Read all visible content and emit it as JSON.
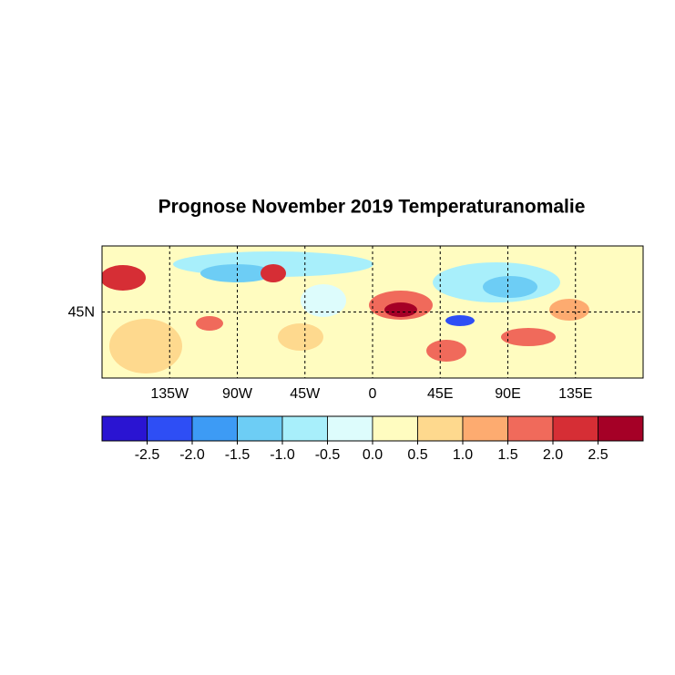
{
  "chart_data": {
    "type": "map",
    "title": "Prognose November 2019 Temperaturanomalie",
    "xlim": [
      -180,
      180
    ],
    "xticks": [
      {
        "value": -135,
        "label": "135W"
      },
      {
        "value": -90,
        "label": "90W"
      },
      {
        "value": -45,
        "label": "45W"
      },
      0,
      {
        "value": 45,
        "label": "45E"
      },
      {
        "value": 90,
        "label": "90E"
      },
      {
        "value": 135,
        "label": "135E"
      }
    ],
    "ylim": [
      0,
      90
    ],
    "yticks": [
      {
        "value": 45,
        "label": "45N"
      }
    ],
    "grid": true,
    "colorbar": {
      "clim": [
        -3,
        3
      ],
      "colors": [
        "#2a14d2",
        "#2e4ef5",
        "#3d9bf5",
        "#6dcdf5",
        "#a8effb",
        "#ddfcfc",
        "#fffcc0",
        "#fed98e",
        "#fdab70",
        "#f06a5b",
        "#d62e35",
        "#a50026"
      ],
      "ticks": [
        -2.5,
        {
          "value": -2.0,
          "label": "-2.0"
        },
        -1.5,
        {
          "value": -1.0,
          "label": "-1.0"
        },
        -0.5,
        {
          "value": 0.0,
          "label": "0.0"
        },
        0.5,
        {
          "value": 1.0,
          "label": "1.0"
        },
        1.5,
        {
          "value": 2.0,
          "label": "2.0"
        },
        2.5
      ]
    }
  }
}
